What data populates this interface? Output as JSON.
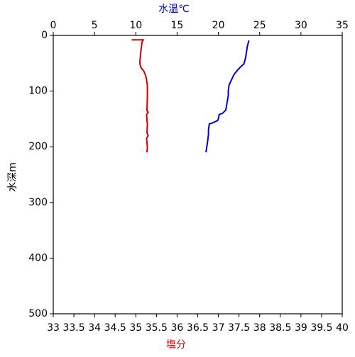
{
  "chart_data": {
    "type": "line",
    "x_label": "塩分",
    "x_label_color": "#cc0000",
    "x2_label": "水温℃",
    "x2_label_color": "#0000cc",
    "y_label": "水深m",
    "xlim": [
      33,
      40
    ],
    "xticks": [
      33,
      33.5,
      34,
      34.5,
      35,
      35.5,
      36,
      36.5,
      37,
      37.5,
      38,
      38.5,
      39,
      39.5,
      40
    ],
    "x2lim": [
      0,
      35
    ],
    "x2ticks": [
      0,
      5,
      10,
      15,
      20,
      25,
      30,
      35
    ],
    "ylim": [
      500,
      0
    ],
    "yticks": [
      0,
      100,
      200,
      300,
      400,
      500
    ],
    "series": [
      {
        "color": "#0000cc",
        "axis": "x2",
        "x": [
          23.7,
          23.5,
          23.3,
          23.1,
          22.8,
          22.4,
          21.9,
          21.3,
          21.2,
          21.2,
          21.0,
          20.9,
          20.5,
          20.1,
          20.0,
          19.9,
          19.3,
          18.9,
          18.8,
          18.8,
          18.7,
          18.6,
          18.5
        ],
        "y": [
          9,
          20,
          40,
          51,
          55,
          61,
          70,
          89,
          100,
          108,
          125,
          134,
          140,
          142,
          150,
          153,
          157,
          159,
          170,
          178,
          190,
          200,
          210
        ]
      },
      {
        "color": "#cc0000",
        "axis": "x",
        "x": [
          34.9,
          35.18,
          35.15,
          35.12,
          35.1,
          35.1,
          35.13,
          35.2,
          35.25,
          35.28,
          35.28,
          35.27,
          35.3,
          35.26,
          35.28,
          35.27,
          35.3,
          35.26,
          35.28,
          35.27
        ],
        "y": [
          8,
          8,
          12,
          30,
          45,
          52,
          58,
          65,
          75,
          90,
          110,
          135,
          138,
          142,
          160,
          175,
          180,
          185,
          200,
          210
        ]
      }
    ]
  }
}
